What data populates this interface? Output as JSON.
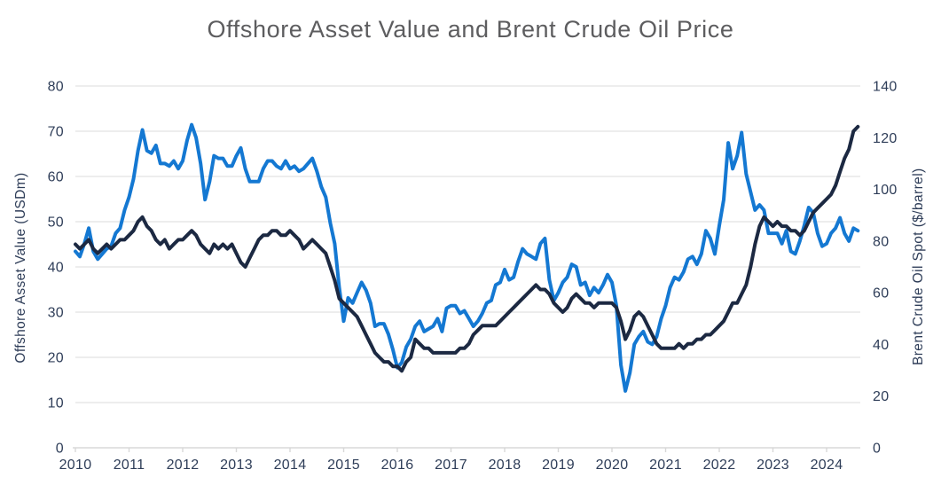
{
  "title": "Offshore Asset Value and Brent Crude Oil Price",
  "colors": {
    "title_text": "#5d5d5f",
    "axis_text": "#2e3d58",
    "gridline": "#e2e2e2",
    "axis_line": "#d8d8d8",
    "asset_value_line": "#1c2942",
    "brent_line": "#1478d2",
    "background": "#ffffff"
  },
  "chart_data": {
    "type": "line",
    "title": "Offshore Asset Value and Brent Crude Oil Price",
    "grid": true,
    "legend": false,
    "y_left": {
      "label": "Offshore Asset Value (USDm)",
      "min": 0,
      "max": 80,
      "ticks": [
        0,
        10,
        20,
        30,
        40,
        50,
        60,
        70,
        80
      ]
    },
    "y_right": {
      "label": "Brent Crude Oil Spot ($/barrel)",
      "min": 0,
      "max": 140,
      "ticks": [
        0,
        20,
        40,
        60,
        80,
        100,
        120,
        140
      ]
    },
    "x": {
      "start_year": 2010,
      "points_per_year": 12,
      "tick_years": [
        2010,
        2011,
        2012,
        2013,
        2014,
        2015,
        2016,
        2017,
        2018,
        2019,
        2020,
        2021,
        2022,
        2023,
        2024
      ]
    },
    "series": [
      {
        "name": "Brent Crude Oil Spot ($/barrel)",
        "axis": "right",
        "color": "#1478d2",
        "values": [
          76,
          74,
          79,
          85,
          76,
          73,
          75,
          77,
          78,
          83,
          85,
          92,
          97,
          104,
          115,
          123,
          115,
          114,
          117,
          110,
          110,
          109,
          111,
          108,
          111,
          119,
          125,
          120,
          110,
          96,
          103,
          113,
          112,
          112,
          109,
          109,
          113,
          116,
          108,
          103,
          103,
          103,
          108,
          111,
          111,
          109,
          108,
          111,
          108,
          109,
          107,
          108,
          110,
          112,
          107,
          101,
          97,
          87,
          79,
          62,
          49,
          58,
          56,
          60,
          64,
          61,
          56,
          47,
          48,
          48,
          44,
          38,
          31,
          33,
          39,
          42,
          47,
          49,
          45,
          46,
          47,
          50,
          45,
          54,
          55,
          55,
          52,
          53,
          50,
          47,
          49,
          52,
          56,
          57,
          63,
          64,
          69,
          65,
          66,
          72,
          77,
          75,
          74,
          73,
          79,
          81,
          65,
          57,
          60,
          64,
          66,
          71,
          70,
          63,
          64,
          59,
          62,
          60,
          63,
          67,
          64,
          55,
          32,
          22,
          29,
          40,
          43,
          45,
          41,
          40,
          43,
          50,
          55,
          62,
          66,
          65,
          68,
          73,
          74,
          71,
          75,
          84,
          81,
          75,
          86,
          96,
          118,
          108,
          113,
          122,
          106,
          99,
          92,
          94,
          92,
          83,
          83,
          83,
          79,
          84,
          76,
          75,
          80,
          86,
          93,
          91,
          83,
          78,
          79,
          83,
          85,
          89,
          83,
          80,
          85,
          84
        ]
      },
      {
        "name": "Offshore Asset Value (USDm)",
        "axis": "left",
        "color": "#1c2942",
        "values": [
          45,
          44,
          45,
          46,
          44,
          43,
          44,
          45,
          44,
          45,
          46,
          46,
          47,
          48,
          50,
          51,
          49,
          48,
          46,
          45,
          46,
          44,
          45,
          46,
          46,
          47,
          48,
          47,
          45,
          44,
          43,
          45,
          44,
          45,
          44,
          45,
          43,
          41,
          40,
          42,
          44,
          46,
          47,
          47,
          48,
          48,
          47,
          47,
          48,
          47,
          46,
          44,
          45,
          46,
          45,
          44,
          43,
          40,
          37,
          33,
          32,
          31,
          30,
          29,
          27,
          25,
          23,
          21,
          20,
          19,
          19,
          18,
          18,
          17,
          19,
          20,
          24,
          23,
          22,
          22,
          21,
          21,
          21,
          21,
          21,
          21,
          22,
          22,
          23,
          25,
          26,
          27,
          27,
          27,
          27,
          28,
          29,
          30,
          31,
          32,
          33,
          34,
          35,
          36,
          35,
          35,
          34,
          32,
          31,
          30,
          31,
          33,
          34,
          33,
          32,
          32,
          31,
          32,
          32,
          32,
          32,
          31,
          28,
          24,
          26,
          29,
          30,
          29,
          27,
          25,
          23,
          22,
          22,
          22,
          22,
          23,
          22,
          23,
          23,
          24,
          24,
          25,
          25,
          26,
          27,
          28,
          30,
          32,
          32,
          34,
          36,
          40,
          45,
          49,
          51,
          50,
          49,
          50,
          49,
          49,
          48,
          48,
          47,
          48,
          50,
          52,
          53,
          54,
          55,
          56,
          58,
          61,
          64,
          66,
          70,
          71
        ]
      }
    ]
  }
}
